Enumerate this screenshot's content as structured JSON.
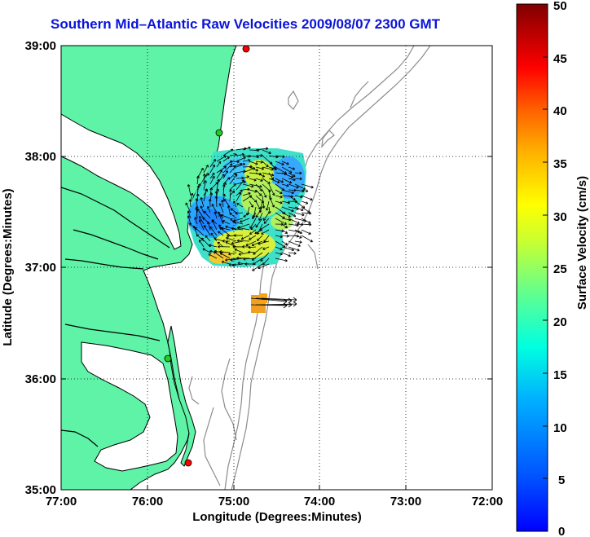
{
  "title": "Southern Mid–Atlantic Raw Velocities 2009/08/07 2300 GMT",
  "map": {
    "xlabel": "Longitude (Degrees:Minutes)",
    "ylabel": "Latitude (Degrees:Minutes)",
    "x_ticks": [
      "77:00",
      "76:00",
      "75:00",
      "74:00",
      "73:00",
      "72:00"
    ],
    "y_ticks": [
      "39:00",
      "38:00",
      "37:00",
      "36:00",
      "35:00"
    ],
    "grid": "dotted",
    "land_color": "#5ef3a6",
    "water_color": "#ffffff",
    "bathymetry_color": "#8c8c8c",
    "arrow_color": "#000000"
  },
  "colorbar": {
    "label": "Surface Velocity (cm/s)",
    "ticks": [
      "50",
      "45",
      "40",
      "35",
      "30",
      "25",
      "20",
      "15",
      "10",
      "5",
      "0"
    ],
    "min": 0,
    "max": 50,
    "colormap": "jet"
  },
  "chart_data": {
    "type": "map",
    "title": "Southern Mid–Atlantic Raw Velocities 2009/08/07 2300 GMT",
    "xlabel": "Longitude (Degrees:Minutes)",
    "ylabel": "Latitude (Degrees:Minutes)",
    "xlim": [
      -77,
      -72
    ],
    "ylim": [
      35,
      39
    ],
    "colorbar_label": "Surface Velocity (cm/s)",
    "colorbar_range": [
      0,
      50
    ],
    "stations": [
      {
        "lon": -74.86,
        "lat": 38.96,
        "color": "#ff0000"
      },
      {
        "lon": -75.07,
        "lat": 38.22,
        "color": "#22cc22"
      },
      {
        "lon": -75.27,
        "lat": 36.18,
        "color": "#22cc22"
      },
      {
        "lon": -75.52,
        "lat": 35.25,
        "color": "#ff0000"
      }
    ]
  }
}
